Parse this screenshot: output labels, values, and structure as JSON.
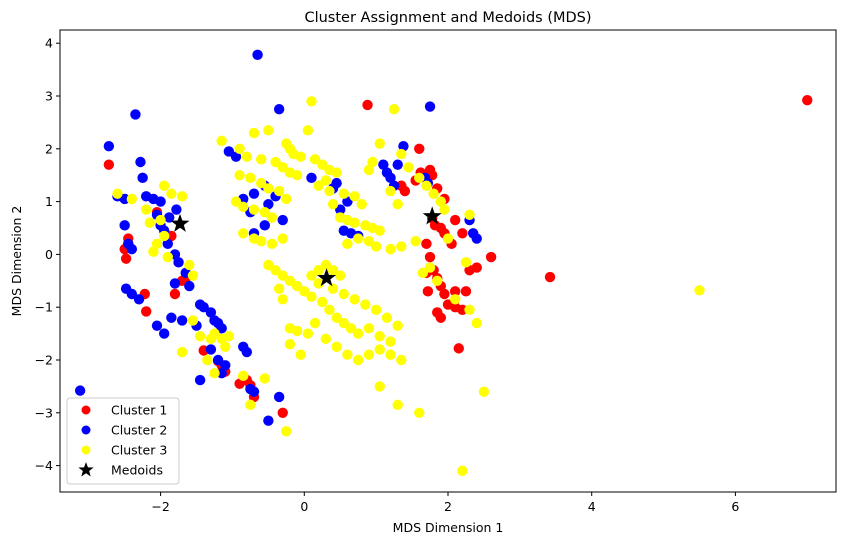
{
  "chart_data": {
    "type": "scatter",
    "title": "Cluster Assignment and Medoids (MDS)",
    "xlabel": "MDS Dimension 1",
    "ylabel": "MDS Dimension 2",
    "xlim": [
      -3.4,
      7.4
    ],
    "ylim": [
      -4.5,
      4.25
    ],
    "xticks": [
      -2,
      0,
      2,
      4,
      6
    ],
    "yticks": [
      -4,
      -3,
      -2,
      -1,
      0,
      1,
      2,
      3,
      4
    ],
    "xtick_labels": [
      "−2",
      "0",
      "2",
      "4",
      "6"
    ],
    "ytick_labels": [
      "−4",
      "−3",
      "−2",
      "−1",
      "0",
      "1",
      "2",
      "3",
      "4"
    ],
    "grid": false,
    "legend_position": "lower-left",
    "legend": {
      "cluster1": "Cluster 1",
      "cluster2": "Cluster 2",
      "cluster3": "Cluster 3",
      "medoids": "Medoids"
    },
    "series": [
      {
        "name": "Cluster 1",
        "color": "#ff0000",
        "points": [
          [
            -2.72,
            1.7
          ],
          [
            -2.45,
            0.3
          ],
          [
            -2.5,
            0.1
          ],
          [
            -2.48,
            -0.08
          ],
          [
            -2.22,
            -0.75
          ],
          [
            -2.2,
            -1.08
          ],
          [
            -2.05,
            0.8
          ],
          [
            -1.85,
            0.35
          ],
          [
            -1.8,
            -0.75
          ],
          [
            -1.7,
            -0.5
          ],
          [
            -1.65,
            -0.45
          ],
          [
            -1.4,
            -1.82
          ],
          [
            -1.2,
            -2.02
          ],
          [
            -1.15,
            -2.1
          ],
          [
            -1.1,
            -2.22
          ],
          [
            -0.9,
            -2.45
          ],
          [
            -0.8,
            -2.38
          ],
          [
            -0.75,
            -2.48
          ],
          [
            -0.7,
            -2.7
          ],
          [
            -0.3,
            -3.0
          ],
          [
            0.88,
            2.83
          ],
          [
            1.6,
            2.0
          ],
          [
            1.35,
            1.3
          ],
          [
            1.4,
            1.2
          ],
          [
            1.55,
            1.4
          ],
          [
            1.62,
            1.55
          ],
          [
            1.7,
            1.45
          ],
          [
            1.75,
            1.6
          ],
          [
            1.78,
            1.5
          ],
          [
            1.85,
            1.25
          ],
          [
            1.95,
            1.05
          ],
          [
            1.78,
            0.68
          ],
          [
            1.82,
            0.55
          ],
          [
            1.9,
            0.5
          ],
          [
            1.95,
            0.4
          ],
          [
            2.1,
            0.65
          ],
          [
            2.2,
            0.4
          ],
          [
            2.05,
            0.2
          ],
          [
            1.7,
            0.2
          ],
          [
            1.75,
            -0.05
          ],
          [
            1.8,
            -0.3
          ],
          [
            1.7,
            -0.35
          ],
          [
            1.85,
            -0.45
          ],
          [
            1.9,
            -0.6
          ],
          [
            1.72,
            -0.7
          ],
          [
            1.95,
            -0.75
          ],
          [
            2.1,
            -0.7
          ],
          [
            2.25,
            -0.7
          ],
          [
            2.3,
            -0.3
          ],
          [
            2.4,
            -0.25
          ],
          [
            2.6,
            -0.05
          ],
          [
            2.0,
            -0.95
          ],
          [
            2.1,
            -1.0
          ],
          [
            2.2,
            -1.05
          ],
          [
            1.85,
            -1.1
          ],
          [
            1.9,
            -1.2
          ],
          [
            2.15,
            -1.78
          ],
          [
            3.42,
            -0.43
          ],
          [
            7.0,
            2.92
          ]
        ]
      },
      {
        "name": "Cluster 2",
        "color": "#0000ff",
        "points": [
          [
            -3.12,
            -2.58
          ],
          [
            -2.72,
            2.05
          ],
          [
            -2.6,
            1.1
          ],
          [
            -2.5,
            1.05
          ],
          [
            -2.5,
            0.55
          ],
          [
            -2.45,
            0.2
          ],
          [
            -2.4,
            0.1
          ],
          [
            -2.35,
            2.65
          ],
          [
            -2.28,
            1.75
          ],
          [
            -2.25,
            1.45
          ],
          [
            -2.2,
            1.1
          ],
          [
            -2.1,
            1.05
          ],
          [
            -2.0,
            1.0
          ],
          [
            -2.05,
            0.75
          ],
          [
            -2.0,
            0.55
          ],
          [
            -1.95,
            0.45
          ],
          [
            -1.9,
            0.2
          ],
          [
            -1.8,
            0.0
          ],
          [
            -1.75,
            -0.15
          ],
          [
            -1.65,
            -0.35
          ],
          [
            -1.6,
            -0.6
          ],
          [
            -2.48,
            -0.65
          ],
          [
            -2.4,
            -0.75
          ],
          [
            -2.3,
            -0.85
          ],
          [
            -2.05,
            -1.35
          ],
          [
            -1.95,
            -1.5
          ],
          [
            -1.85,
            -1.2
          ],
          [
            -1.7,
            -1.25
          ],
          [
            -1.5,
            -1.35
          ],
          [
            -1.4,
            -1.0
          ],
          [
            -1.45,
            -0.95
          ],
          [
            -1.3,
            -1.1
          ],
          [
            -1.25,
            -1.25
          ],
          [
            -1.2,
            -1.3
          ],
          [
            -1.15,
            -1.4
          ],
          [
            -1.3,
            -1.8
          ],
          [
            -1.2,
            -2.0
          ],
          [
            -1.1,
            -2.1
          ],
          [
            -1.15,
            -2.25
          ],
          [
            -0.85,
            -1.75
          ],
          [
            -0.8,
            -1.85
          ],
          [
            -0.75,
            -2.55
          ],
          [
            -0.7,
            -2.6
          ],
          [
            -0.5,
            -3.15
          ],
          [
            -0.35,
            -2.7
          ],
          [
            -1.45,
            -2.38
          ],
          [
            -1.8,
            -0.55
          ],
          [
            -1.78,
            0.85
          ],
          [
            -1.88,
            0.7
          ],
          [
            -0.65,
            3.78
          ],
          [
            -0.35,
            2.75
          ],
          [
            -1.05,
            1.95
          ],
          [
            -0.95,
            1.85
          ],
          [
            -0.85,
            1.05
          ],
          [
            -0.7,
            1.15
          ],
          [
            -0.55,
            1.3
          ],
          [
            -0.4,
            1.1
          ],
          [
            -0.5,
            0.95
          ],
          [
            -0.3,
            0.65
          ],
          [
            -0.75,
            0.8
          ],
          [
            -0.55,
            0.55
          ],
          [
            -0.7,
            0.4
          ],
          [
            0.1,
            1.45
          ],
          [
            0.45,
            1.35
          ],
          [
            0.4,
            1.25
          ],
          [
            0.6,
            1.0
          ],
          [
            0.5,
            0.85
          ],
          [
            0.55,
            0.45
          ],
          [
            0.65,
            0.4
          ],
          [
            0.75,
            0.35
          ],
          [
            1.1,
            1.7
          ],
          [
            1.15,
            1.55
          ],
          [
            1.2,
            1.45
          ],
          [
            1.25,
            1.3
          ],
          [
            1.3,
            1.7
          ],
          [
            1.38,
            2.05
          ],
          [
            1.75,
            2.8
          ],
          [
            1.68,
            1.45
          ],
          [
            1.72,
            1.35
          ],
          [
            2.3,
            0.65
          ],
          [
            2.35,
            0.4
          ],
          [
            2.4,
            0.3
          ]
        ]
      },
      {
        "name": "Cluster 3",
        "color": "#ffff00",
        "points": [
          [
            -2.6,
            1.15
          ],
          [
            -2.4,
            1.05
          ],
          [
            -2.2,
            0.85
          ],
          [
            -2.15,
            0.6
          ],
          [
            -2.0,
            0.65
          ],
          [
            -1.95,
            0.35
          ],
          [
            -2.05,
            0.2
          ],
          [
            -2.1,
            0.05
          ],
          [
            -1.9,
            -0.05
          ],
          [
            -1.95,
            1.3
          ],
          [
            -1.85,
            1.15
          ],
          [
            -1.7,
            1.1
          ],
          [
            -1.6,
            -0.2
          ],
          [
            -1.55,
            -0.4
          ],
          [
            -1.7,
            -1.85
          ],
          [
            -1.55,
            -1.25
          ],
          [
            -1.45,
            -1.55
          ],
          [
            -1.3,
            -1.6
          ],
          [
            -1.25,
            -1.5
          ],
          [
            -1.15,
            -1.6
          ],
          [
            -1.1,
            -1.75
          ],
          [
            -1.35,
            -2.0
          ],
          [
            -1.25,
            -2.25
          ],
          [
            -1.05,
            -1.55
          ],
          [
            -0.85,
            -2.3
          ],
          [
            -0.75,
            -2.85
          ],
          [
            -0.25,
            -3.35
          ],
          [
            -0.55,
            -2.35
          ],
          [
            -1.15,
            2.15
          ],
          [
            -0.9,
            2.0
          ],
          [
            -0.7,
            2.3
          ],
          [
            -0.5,
            2.35
          ],
          [
            -0.25,
            2.1
          ],
          [
            -0.2,
            2.0
          ],
          [
            -0.15,
            1.9
          ],
          [
            -0.05,
            1.85
          ],
          [
            -0.8,
            1.85
          ],
          [
            -0.6,
            1.8
          ],
          [
            -0.4,
            1.75
          ],
          [
            -0.3,
            1.65
          ],
          [
            -0.2,
            1.55
          ],
          [
            -0.1,
            1.5
          ],
          [
            -0.9,
            1.5
          ],
          [
            -0.75,
            1.45
          ],
          [
            -0.6,
            1.35
          ],
          [
            -0.5,
            1.25
          ],
          [
            -0.35,
            1.2
          ],
          [
            -0.25,
            1.05
          ],
          [
            -0.95,
            1.0
          ],
          [
            -0.85,
            0.9
          ],
          [
            -0.7,
            0.85
          ],
          [
            -0.55,
            0.8
          ],
          [
            -0.45,
            0.7
          ],
          [
            -0.85,
            0.4
          ],
          [
            -0.7,
            0.3
          ],
          [
            -0.6,
            0.25
          ],
          [
            -0.45,
            0.2
          ],
          [
            -0.3,
            0.3
          ],
          [
            0.1,
            2.9
          ],
          [
            0.05,
            2.35
          ],
          [
            0.15,
            1.8
          ],
          [
            0.25,
            1.7
          ],
          [
            0.35,
            1.6
          ],
          [
            0.45,
            1.55
          ],
          [
            0.3,
            1.4
          ],
          [
            0.2,
            1.3
          ],
          [
            0.35,
            1.2
          ],
          [
            0.55,
            1.15
          ],
          [
            0.7,
            1.1
          ],
          [
            0.8,
            0.95
          ],
          [
            0.4,
            0.95
          ],
          [
            0.5,
            0.7
          ],
          [
            0.6,
            0.65
          ],
          [
            0.7,
            0.6
          ],
          [
            0.85,
            0.55
          ],
          [
            0.95,
            0.5
          ],
          [
            1.05,
            0.45
          ],
          [
            0.6,
            0.2
          ],
          [
            0.75,
            0.3
          ],
          [
            0.9,
            0.25
          ],
          [
            1.0,
            0.15
          ],
          [
            1.2,
            0.1
          ],
          [
            1.35,
            0.15
          ],
          [
            1.55,
            0.25
          ],
          [
            -0.5,
            -0.2
          ],
          [
            -0.4,
            -0.3
          ],
          [
            -0.3,
            -0.4
          ],
          [
            -0.2,
            -0.5
          ],
          [
            -0.1,
            -0.6
          ],
          [
            0.0,
            -0.7
          ],
          [
            0.1,
            -0.4
          ],
          [
            0.2,
            -0.3
          ],
          [
            0.3,
            -0.2
          ],
          [
            0.4,
            -0.3
          ],
          [
            0.5,
            -0.4
          ],
          [
            0.2,
            -0.55
          ],
          [
            0.1,
            -0.8
          ],
          [
            0.25,
            -0.9
          ],
          [
            0.4,
            -0.65
          ],
          [
            0.55,
            -0.75
          ],
          [
            0.7,
            -0.85
          ],
          [
            0.85,
            -0.95
          ],
          [
            1.0,
            -1.05
          ],
          [
            1.15,
            -1.2
          ],
          [
            1.3,
            -1.35
          ],
          [
            0.35,
            -1.05
          ],
          [
            0.45,
            -1.2
          ],
          [
            0.55,
            -1.3
          ],
          [
            0.65,
            -1.4
          ],
          [
            0.75,
            -1.5
          ],
          [
            0.9,
            -1.4
          ],
          [
            1.05,
            -1.55
          ],
          [
            1.2,
            -1.65
          ],
          [
            0.3,
            -1.6
          ],
          [
            0.45,
            -1.75
          ],
          [
            0.6,
            -1.9
          ],
          [
            0.75,
            -2.0
          ],
          [
            0.9,
            -1.9
          ],
          [
            1.05,
            -1.8
          ],
          [
            1.2,
            -1.9
          ],
          [
            1.35,
            -2.0
          ],
          [
            0.15,
            -1.3
          ],
          [
            0.05,
            -1.5
          ],
          [
            -0.1,
            -1.45
          ],
          [
            -0.2,
            -1.4
          ],
          [
            -0.2,
            -1.7
          ],
          [
            -0.05,
            -1.9
          ],
          [
            -0.3,
            -0.85
          ],
          [
            -0.35,
            -0.65
          ],
          [
            1.05,
            -2.5
          ],
          [
            1.3,
            -2.85
          ],
          [
            1.6,
            -3.0
          ],
          [
            2.2,
            -4.1
          ],
          [
            2.5,
            -2.6
          ],
          [
            2.4,
            -1.3
          ],
          [
            2.3,
            -1.05
          ],
          [
            2.1,
            -0.85
          ],
          [
            1.85,
            -0.5
          ],
          [
            1.75,
            -0.25
          ],
          [
            1.65,
            -0.35
          ],
          [
            1.9,
            1.0
          ],
          [
            1.8,
            1.15
          ],
          [
            1.7,
            1.3
          ],
          [
            1.6,
            1.45
          ],
          [
            1.45,
            1.65
          ],
          [
            1.35,
            1.9
          ],
          [
            1.25,
            2.75
          ],
          [
            1.05,
            2.1
          ],
          [
            0.95,
            1.75
          ],
          [
            0.9,
            1.6
          ],
          [
            1.2,
            1.2
          ],
          [
            1.3,
            0.95
          ],
          [
            2.0,
            0.3
          ],
          [
            1.95,
            0.85
          ],
          [
            2.3,
            0.75
          ],
          [
            2.25,
            -0.15
          ],
          [
            5.5,
            -0.68
          ]
        ]
      }
    ],
    "medoids": {
      "name": "Medoids",
      "color": "#000000",
      "points": [
        [
          -1.73,
          0.58
        ],
        [
          0.31,
          -0.45
        ],
        [
          1.78,
          0.72
        ]
      ]
    }
  }
}
